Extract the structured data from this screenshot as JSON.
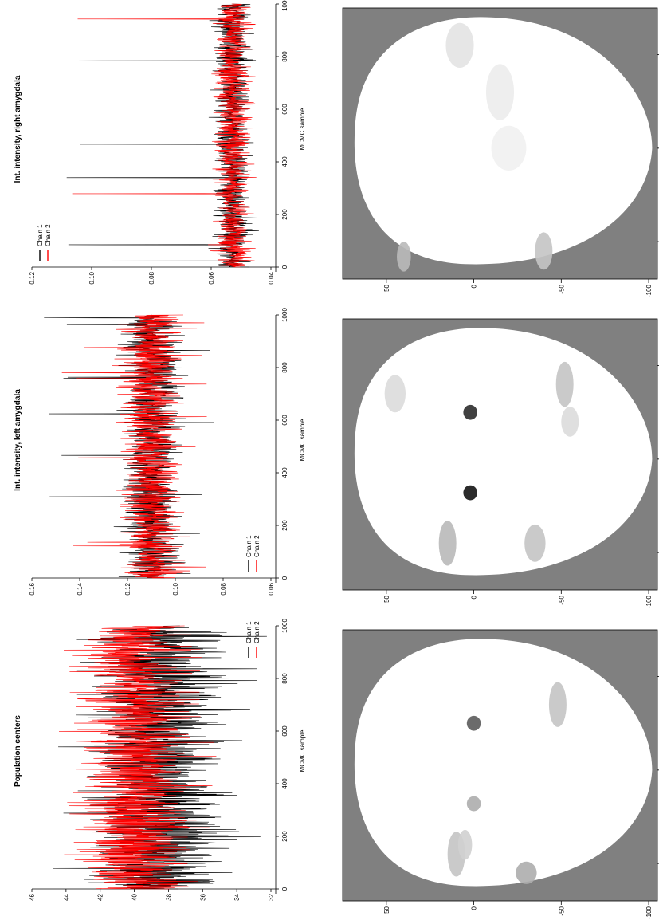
{
  "chart_data": [
    {
      "type": "line",
      "title": "Population centers",
      "xlabel": "MCMC sample",
      "ylabel": "",
      "xlim": [
        0,
        1000
      ],
      "ylim": [
        32,
        46
      ],
      "x_ticks": [
        "0",
        "200",
        "400",
        "600",
        "800",
        "1000"
      ],
      "x_tick_values": [
        0,
        200,
        400,
        600,
        800,
        1000
      ],
      "y_ticks": [
        "32",
        "34",
        "36",
        "38",
        "40",
        "42",
        "44",
        "46"
      ],
      "y_tick_values": [
        32,
        34,
        36,
        38,
        40,
        42,
        44,
        46
      ],
      "legend_position": "right",
      "series": [
        {
          "name": "Chain 1",
          "color": "#000000",
          "base": 38.5,
          "amp": 3.6,
          "spike_low": 32.2,
          "spike_high": 45.0
        },
        {
          "name": "Chain 2",
          "color": "#ff0000",
          "base": 40.0,
          "amp": 3.2,
          "spike_low": 34.8,
          "spike_high": 44.5
        }
      ]
    },
    {
      "type": "line",
      "title": "Int. intensity, left amygdala",
      "xlabel": "MCMC sample",
      "ylabel": "",
      "xlim": [
        0,
        1000
      ],
      "ylim": [
        0.06,
        0.16
      ],
      "x_ticks": [
        "0",
        "200",
        "400",
        "600",
        "800",
        "1000"
      ],
      "x_tick_values": [
        0,
        200,
        400,
        600,
        800,
        1000
      ],
      "y_ticks": [
        "0.06",
        "0.08",
        "0.10",
        "0.12",
        "0.14",
        "0.16"
      ],
      "y_tick_values": [
        0.06,
        0.08,
        0.1,
        0.12,
        0.14,
        0.16
      ],
      "legend_position": "bottom-left",
      "series": [
        {
          "name": "Chain 1",
          "color": "#000000",
          "base": 0.11,
          "amp": 0.012,
          "spike_low": 0.082,
          "spike_high": 0.155
        },
        {
          "name": "Chain 2",
          "color": "#ff0000",
          "base": 0.11,
          "amp": 0.012,
          "spike_low": 0.085,
          "spike_high": 0.148
        }
      ]
    },
    {
      "type": "line",
      "title": "Int. intensity, right amygdala",
      "xlabel": "MCMC sample",
      "ylabel": "",
      "xlim": [
        0,
        1000
      ],
      "ylim": [
        0.04,
        0.12
      ],
      "x_ticks": [
        "0",
        "200",
        "400",
        "600",
        "800",
        "1000"
      ],
      "x_tick_values": [
        0,
        200,
        400,
        600,
        800,
        1000
      ],
      "y_ticks": [
        "0.04",
        "0.06",
        "0.08",
        "0.10",
        "0.12"
      ],
      "y_tick_values": [
        0.04,
        0.06,
        0.08,
        0.1,
        0.12
      ],
      "legend_position": "top-left",
      "series": [
        {
          "name": "Chain 1",
          "color": "#000000",
          "base": 0.053,
          "amp": 0.006,
          "spike_low": 0.044,
          "spike_high": 0.11
        },
        {
          "name": "Chain 2",
          "color": "#ff0000",
          "base": 0.053,
          "amp": 0.006,
          "spike_low": 0.045,
          "spike_high": 0.118
        }
      ]
    },
    {
      "type": "heatmap",
      "title": "",
      "xlim": [
        -70,
        75
      ],
      "ylim": [
        -105,
        75
      ],
      "x_ticks": [
        "-50",
        "0",
        "50"
      ],
      "x_tick_values": [
        -50,
        0,
        50
      ],
      "y_ticks": [
        "50",
        "0",
        "-50",
        "-100"
      ],
      "y_tick_values": [
        50,
        0,
        -50,
        -100
      ],
      "background_color": "#808080",
      "blobs": [
        [
          -45,
          10,
          12,
          5,
          0.25
        ],
        [
          -40,
          5,
          8,
          4,
          0.2
        ],
        [
          25,
          0,
          4,
          4,
          0.7
        ],
        [
          -18,
          0,
          4,
          4,
          0.35
        ],
        [
          35,
          -48,
          12,
          5,
          0.25
        ],
        [
          -55,
          -30,
          6,
          6,
          0.35
        ]
      ]
    },
    {
      "type": "heatmap",
      "title": "",
      "xlim": [
        -70,
        75
      ],
      "ylim": [
        -105,
        75
      ],
      "x_ticks": [
        "-50",
        "0",
        "50"
      ],
      "x_tick_values": [
        -50,
        0,
        50
      ],
      "y_ticks": [
        "50",
        "0",
        "-50",
        "-100"
      ],
      "y_tick_values": [
        50,
        0,
        -50,
        -100
      ],
      "background_color": "#808080",
      "blobs": [
        [
          -45,
          15,
          12,
          5,
          0.3
        ],
        [
          -45,
          -35,
          10,
          6,
          0.25
        ],
        [
          -18,
          2,
          4,
          4,
          1.0
        ],
        [
          25,
          2,
          4,
          4,
          0.9
        ],
        [
          40,
          -52,
          12,
          5,
          0.25
        ],
        [
          20,
          -55,
          8,
          5,
          0.15
        ],
        [
          35,
          45,
          10,
          6,
          0.15
        ]
      ]
    },
    {
      "type": "heatmap",
      "title": "",
      "xlim": [
        -70,
        75
      ],
      "ylim": [
        -105,
        75
      ],
      "x_ticks": [
        "-50",
        "0",
        "50"
      ],
      "x_tick_values": [
        -50,
        0,
        50
      ],
      "y_ticks": [
        "50",
        "0",
        "-50",
        "-100"
      ],
      "y_tick_values": [
        50,
        0,
        -50,
        -100
      ],
      "background_color": "#808080",
      "blobs": [
        [
          -58,
          40,
          8,
          4,
          0.3
        ],
        [
          -55,
          -40,
          10,
          5,
          0.25
        ],
        [
          55,
          8,
          12,
          8,
          0.12
        ],
        [
          30,
          -15,
          15,
          8,
          0.08
        ],
        [
          0,
          -20,
          12,
          10,
          0.06
        ]
      ]
    }
  ]
}
